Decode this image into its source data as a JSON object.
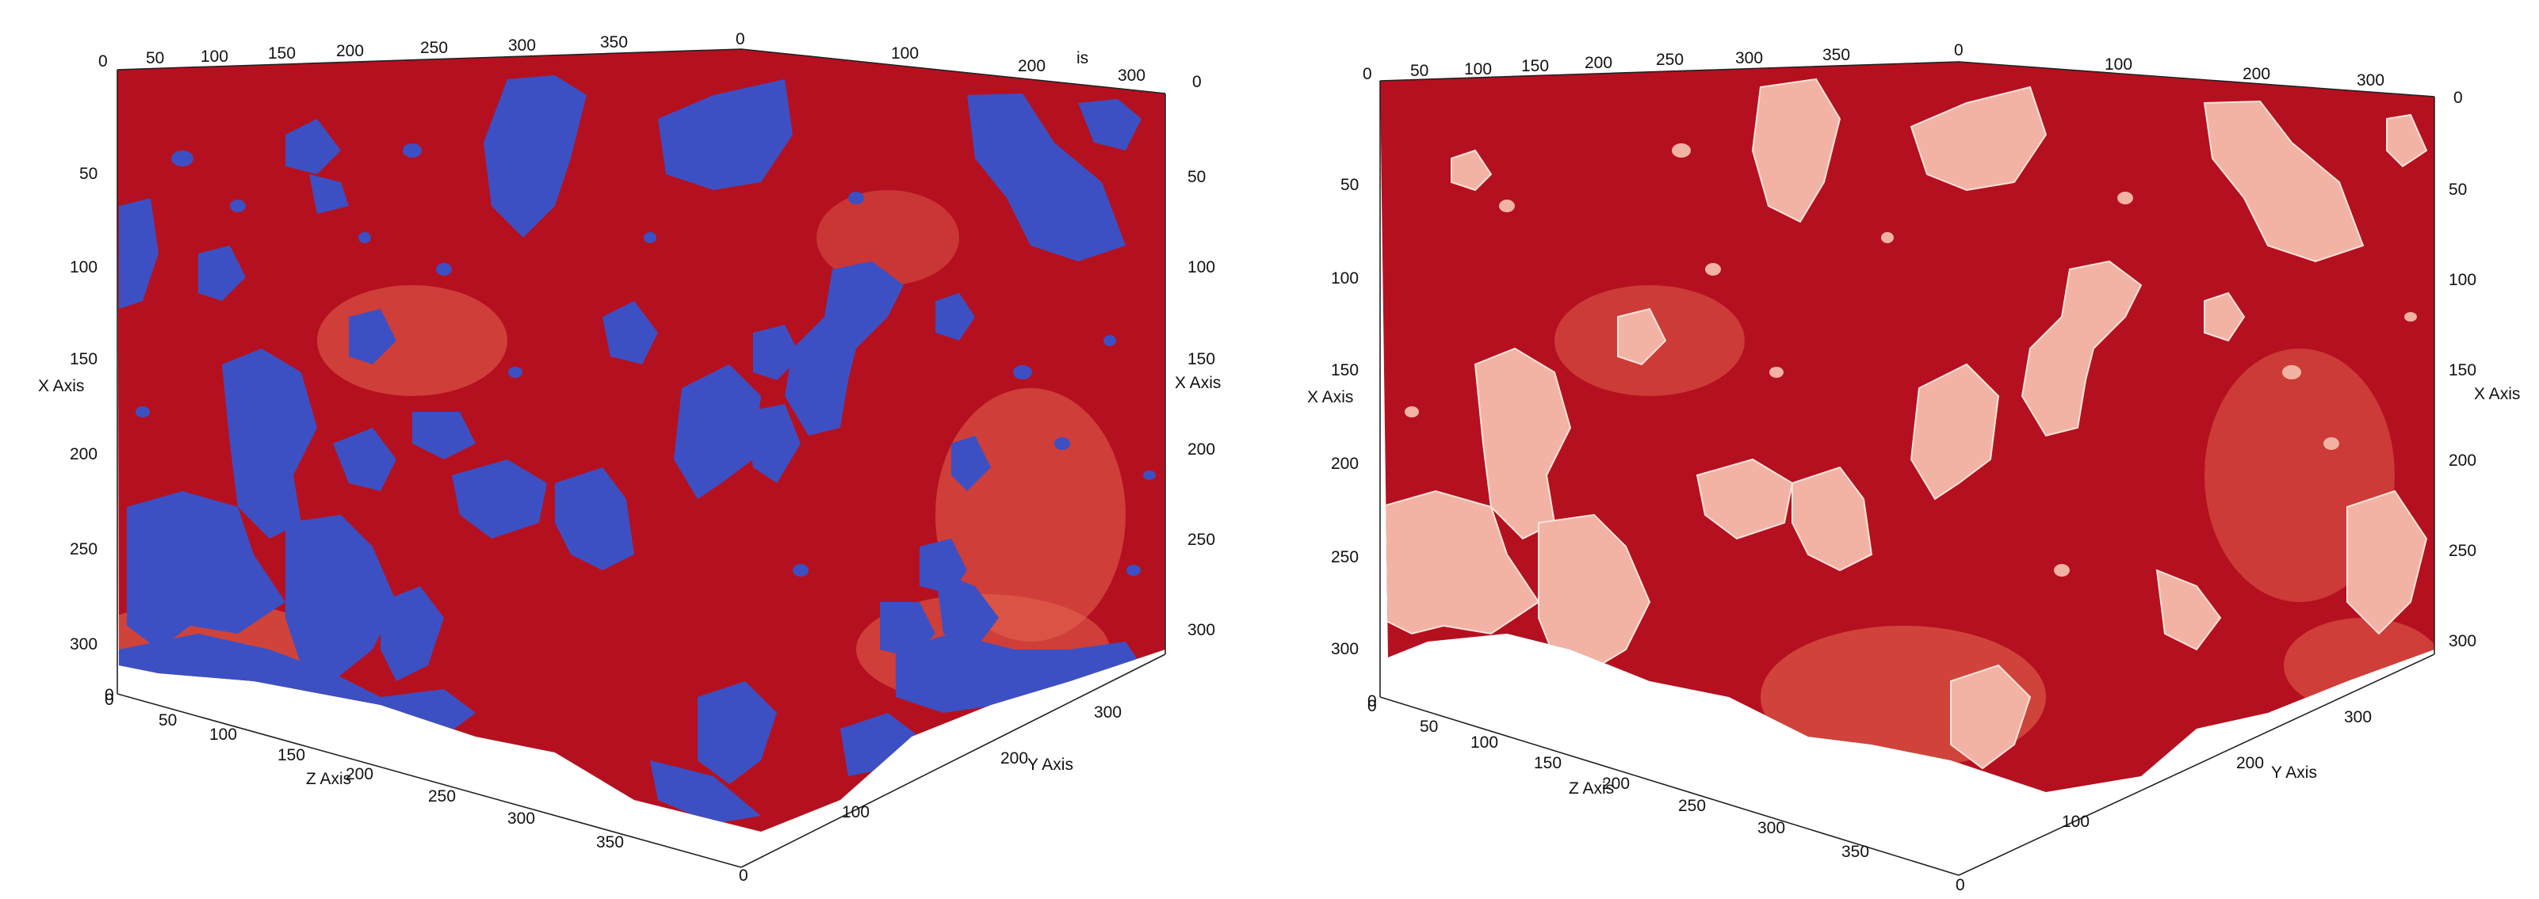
{
  "panels": [
    {
      "id": "left",
      "colors": {
        "solid": "#b5101f",
        "mid": "#e3654f",
        "pore": "#3c50c4"
      },
      "axes": {
        "top_z_ticks": [
          "0",
          "50",
          "100",
          "150",
          "200",
          "250",
          "300",
          "350"
        ],
        "top_y_ticks": [
          "0",
          "100",
          "200",
          "300"
        ],
        "top_y_title": "is",
        "left_x_ticks": [
          "50",
          "100",
          "150",
          "200",
          "250",
          "300",
          "0"
        ],
        "left_x_title": "X Axis",
        "right_x_ticks": [
          "0",
          "50",
          "100",
          "150",
          "200",
          "250",
          "300"
        ],
        "right_x_title": "X Axis",
        "bottom_z_ticks": [
          "0",
          "50",
          "100",
          "150",
          "200",
          "250",
          "300",
          "350"
        ],
        "bottom_z_title": "Z Axis",
        "bottom_y_ticks": [
          "0",
          "100",
          "200",
          "300"
        ],
        "bottom_y_title": "Y Axis"
      }
    },
    {
      "id": "right",
      "colors": {
        "solid": "#b5101f",
        "mid": "#e3654f",
        "pore": "#f2b3a4"
      },
      "axes": {
        "top_z_ticks": [
          "0",
          "50",
          "100",
          "150",
          "200",
          "250",
          "300",
          "350"
        ],
        "top_y_ticks": [
          "0",
          "100",
          "200",
          "300"
        ],
        "top_y_title": "",
        "left_x_ticks": [
          "50",
          "100",
          "150",
          "200",
          "250",
          "300",
          "0"
        ],
        "left_x_title": "X Axis",
        "right_x_ticks": [
          "0",
          "50",
          "100",
          "150",
          "200",
          "250",
          "300"
        ],
        "right_x_title": "X Axis",
        "bottom_z_ticks": [
          "0",
          "50",
          "100",
          "150",
          "200",
          "250",
          "300",
          "350"
        ],
        "bottom_z_title": "Z Axis",
        "bottom_y_ticks": [
          "0",
          "100",
          "200",
          "300"
        ],
        "bottom_y_title": "Y Axis"
      }
    }
  ]
}
